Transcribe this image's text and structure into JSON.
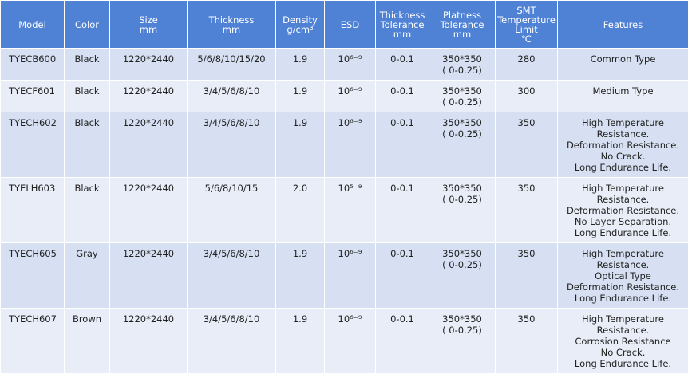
{
  "table": {
    "header": [
      [
        "Model"
      ],
      [
        "Color"
      ],
      [
        "Size",
        "mm"
      ],
      [
        "Thickness",
        "mm"
      ],
      [
        "Density",
        "g/cm³"
      ],
      [
        "ESD"
      ],
      [
        "Thickness",
        "Tolerance",
        "mm"
      ],
      [
        "Platness",
        "Tolerance",
        "mm"
      ],
      [
        "SMT",
        "Temperature",
        "Limit",
        "℃"
      ],
      [
        "Features"
      ]
    ],
    "rows": [
      [
        [
          "TYECB600"
        ],
        [
          "Black"
        ],
        [
          "1220*2440"
        ],
        [
          "5/6/8/10/15/20"
        ],
        [
          "1.9"
        ],
        [
          "10⁶⁻⁹"
        ],
        [
          "0-0.1"
        ],
        [
          "350*350",
          "( 0-0.25)"
        ],
        [
          "280"
        ],
        [
          "Common Type"
        ]
      ],
      [
        [
          "TYECF601"
        ],
        [
          "Black"
        ],
        [
          "1220*2440"
        ],
        [
          "3/4/5/6/8/10"
        ],
        [
          "1.9"
        ],
        [
          "10⁶⁻⁹"
        ],
        [
          "0-0.1"
        ],
        [
          "350*350",
          "( 0-0.25)"
        ],
        [
          "300"
        ],
        [
          "Medium Type"
        ]
      ],
      [
        [
          "TYECH602"
        ],
        [
          "Black"
        ],
        [
          "1220*2440"
        ],
        [
          "3/4/5/6/8/10"
        ],
        [
          "1.9"
        ],
        [
          "10⁶⁻⁹"
        ],
        [
          "0-0.1"
        ],
        [
          "350*350",
          "( 0-0.25)"
        ],
        [
          "350"
        ],
        [
          "High Temperature",
          "Resistance.",
          "Deformation Resistance.",
          "No Crack.",
          "Long Endurance Life."
        ]
      ],
      [
        [
          "TYELH603"
        ],
        [
          "Black"
        ],
        [
          "1220*2440"
        ],
        [
          "5/6/8/10/15"
        ],
        [
          "2.0"
        ],
        [
          "10⁵⁻⁹"
        ],
        [
          "0-0.1"
        ],
        [
          "350*350",
          "( 0-0.25)"
        ],
        [
          "350"
        ],
        [
          "High Temperature",
          "Resistance.",
          "Deformation Resistance.",
          "No Layer Separation.",
          "Long Endurance Life."
        ]
      ],
      [
        [
          "TYECH605"
        ],
        [
          "Gray"
        ],
        [
          "1220*2440"
        ],
        [
          "3/4/5/6/8/10"
        ],
        [
          "1.9"
        ],
        [
          "10⁶⁻⁹"
        ],
        [
          "0-0.1"
        ],
        [
          "350*350",
          "( 0-0.25)"
        ],
        [
          "350"
        ],
        [
          "High Temperature",
          "Resistance.",
          "Optical Type",
          "Deformation Resistance.",
          "Long Endurance Life."
        ]
      ],
      [
        [
          "TYECH607"
        ],
        [
          "Brown"
        ],
        [
          "1220*2440"
        ],
        [
          "3/4/5/6/8/10"
        ],
        [
          "1.9"
        ],
        [
          "10⁶⁻⁹"
        ],
        [
          "0-0.1"
        ],
        [
          "350*350",
          "( 0-0.25)"
        ],
        [
          "350"
        ],
        [
          "High Temperature",
          "Resistance.",
          "Corrosion Resistance",
          "No Crack.",
          "Long Endurance Life."
        ]
      ]
    ]
  }
}
